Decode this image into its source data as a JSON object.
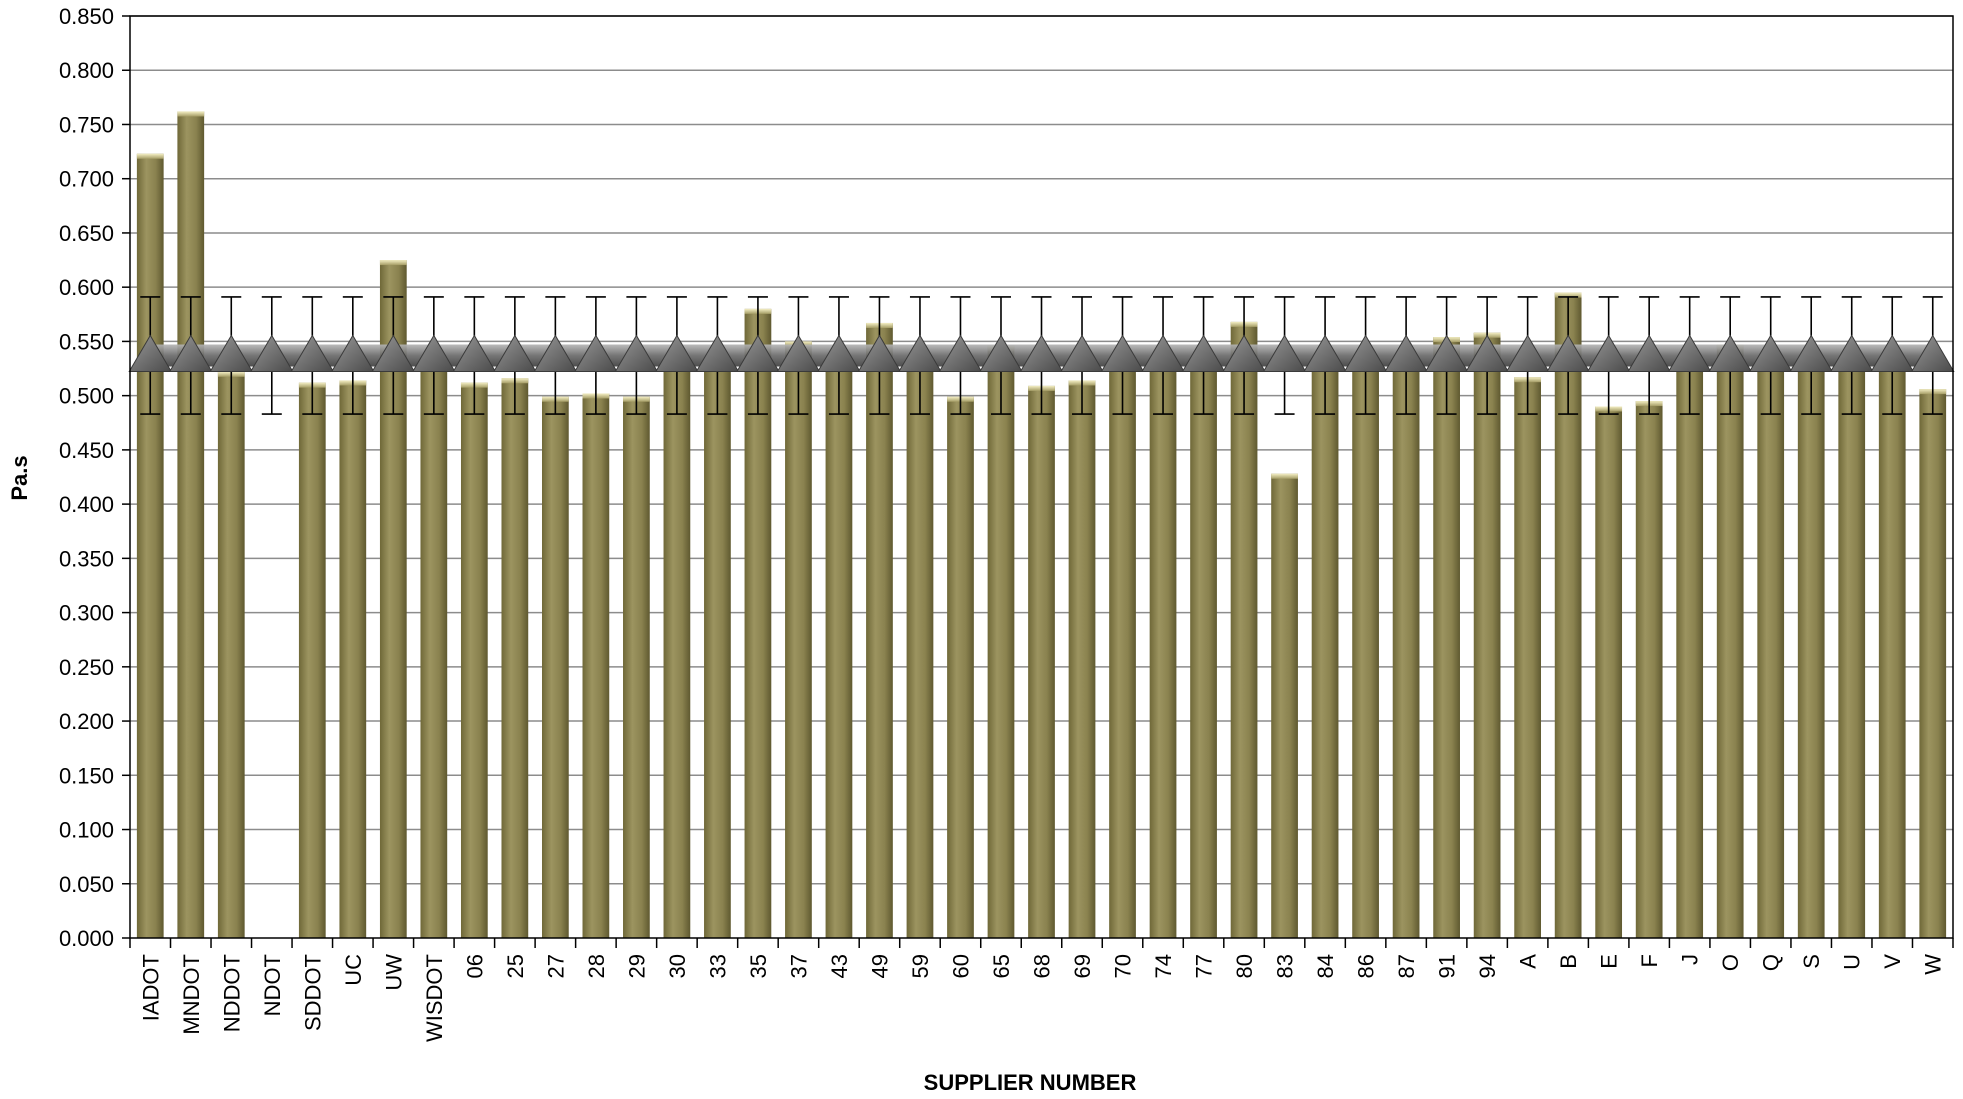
{
  "chart_data": {
    "type": "bar",
    "title": "",
    "xlabel": "SUPPLIER NUMBER",
    "ylabel": "Pa.s",
    "ylim": [
      0,
      0.85
    ],
    "ytick_step": 0.05,
    "yticks": [
      "0.000",
      "0.050",
      "0.100",
      "0.150",
      "0.200",
      "0.250",
      "0.300",
      "0.350",
      "0.400",
      "0.450",
      "0.500",
      "0.550",
      "0.600",
      "0.650",
      "0.700",
      "0.750",
      "0.800",
      "0.850"
    ],
    "grid": true,
    "legend": "none",
    "categories": [
      "IADOT",
      "MNDOT",
      "NDDOT",
      "NDOT",
      "SDDOT",
      "UC",
      "UW",
      "WISDOT",
      "06",
      "25",
      "27",
      "28",
      "29",
      "30",
      "33",
      "35",
      "37",
      "43",
      "49",
      "59",
      "60",
      "65",
      "68",
      "69",
      "70",
      "74",
      "77",
      "80",
      "83",
      "84",
      "86",
      "87",
      "91",
      "94",
      "A",
      "B",
      "E",
      "F",
      "J",
      "O",
      "Q",
      "S",
      "U",
      "V",
      "W"
    ],
    "series": [
      {
        "type": "bar",
        "values": [
          0.723,
          0.762,
          0.522,
          null,
          0.512,
          0.514,
          0.625,
          0.53,
          0.512,
          0.516,
          0.499,
          0.502,
          0.499,
          0.53,
          0.53,
          0.58,
          0.55,
          0.53,
          0.567,
          0.53,
          0.499,
          0.546,
          0.509,
          0.514,
          0.53,
          0.53,
          0.53,
          0.568,
          0.428,
          0.53,
          0.53,
          0.53,
          0.554,
          0.558,
          0.517,
          0.595,
          0.49,
          0.495,
          0.53,
          0.547,
          0.53,
          0.53,
          0.53,
          0.53,
          0.506
        ],
        "color": "#8c8350"
      },
      {
        "type": "line-marker",
        "marker": "triangle",
        "values": [
          0.537,
          0.537,
          0.537,
          0.537,
          0.537,
          0.537,
          0.537,
          0.537,
          0.537,
          0.537,
          0.537,
          0.537,
          0.537,
          0.537,
          0.537,
          0.537,
          0.537,
          0.537,
          0.537,
          0.537,
          0.537,
          0.537,
          0.537,
          0.537,
          0.537,
          0.537,
          0.537,
          0.537,
          0.537,
          0.537,
          0.537,
          0.537,
          0.537,
          0.537,
          0.537,
          0.537,
          0.537,
          0.537,
          0.537,
          0.537,
          0.537,
          0.537,
          0.537,
          0.537,
          0.537
        ],
        "error_minus": 0.054,
        "error_plus": 0.054,
        "color": "#6e6e6e"
      }
    ]
  }
}
